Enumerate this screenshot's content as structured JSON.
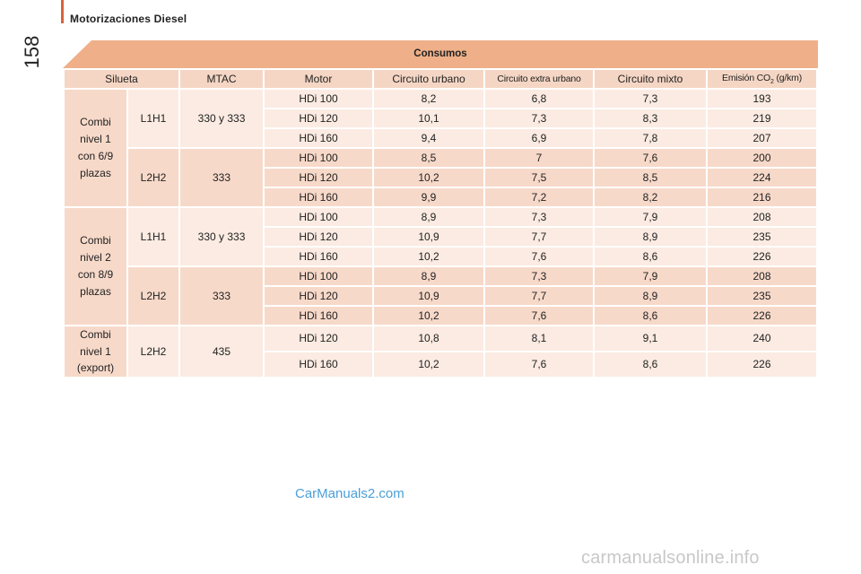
{
  "header": {
    "section_title": "Motorizaciones Diesel",
    "page_number": "158"
  },
  "table": {
    "title": "Consumos",
    "columns": {
      "silueta": "Silueta",
      "mtac": "MTAC",
      "motor": "Motor",
      "urbano": "Circuito urbano",
      "extra": "Circuito extra urbano",
      "mixto": "Circuito mixto",
      "emision_prefix": "Emisión CO",
      "emision_sub": "2",
      "emision_suffix": " (g/km)"
    },
    "groups": [
      {
        "silueta": [
          "Combi",
          "nivel 1",
          "con 6/9",
          "plazas"
        ],
        "variants": [
          {
            "body": "L1H1",
            "mtac": "330 y 333",
            "rows": [
              {
                "motor": "HDi 100",
                "urbano": "8,2",
                "extra": "6,8",
                "mixto": "7,3",
                "co2": "193"
              },
              {
                "motor": "HDi 120",
                "urbano": "10,1",
                "extra": "7,3",
                "mixto": "8,3",
                "co2": "219"
              },
              {
                "motor": "HDi 160",
                "urbano": "9,4",
                "extra": "6,9",
                "mixto": "7,8",
                "co2": "207"
              }
            ]
          },
          {
            "body": "L2H2",
            "mtac": "333",
            "rows": [
              {
                "motor": "HDi 100",
                "urbano": "8,5",
                "extra": "7",
                "mixto": "7,6",
                "co2": "200"
              },
              {
                "motor": "HDi 120",
                "urbano": "10,2",
                "extra": "7,5",
                "mixto": "8,5",
                "co2": "224"
              },
              {
                "motor": "HDi 160",
                "urbano": "9,9",
                "extra": "7,2",
                "mixto": "8,2",
                "co2": "216"
              }
            ]
          }
        ]
      },
      {
        "silueta": [
          "Combi",
          "nivel 2",
          "con 8/9",
          "plazas"
        ],
        "variants": [
          {
            "body": "L1H1",
            "mtac": "330 y 333",
            "rows": [
              {
                "motor": "HDi 100",
                "urbano": "8,9",
                "extra": "7,3",
                "mixto": "7,9",
                "co2": "208"
              },
              {
                "motor": "HDi 120",
                "urbano": "10,9",
                "extra": "7,7",
                "mixto": "8,9",
                "co2": "235"
              },
              {
                "motor": "HDi 160",
                "urbano": "10,2",
                "extra": "7,6",
                "mixto": "8,6",
                "co2": "226"
              }
            ]
          },
          {
            "body": "L2H2",
            "mtac": "333",
            "rows": [
              {
                "motor": "HDi 100",
                "urbano": "8,9",
                "extra": "7,3",
                "mixto": "7,9",
                "co2": "208"
              },
              {
                "motor": "HDi 120",
                "urbano": "10,9",
                "extra": "7,7",
                "mixto": "8,9",
                "co2": "235"
              },
              {
                "motor": "HDi 160",
                "urbano": "10,2",
                "extra": "7,6",
                "mixto": "8,6",
                "co2": "226"
              }
            ]
          }
        ]
      },
      {
        "silueta": [
          "Combi",
          "nivel 1",
          "(export)"
        ],
        "variants": [
          {
            "body": "L2H2",
            "mtac": "435",
            "rows": [
              {
                "motor": "HDi 120",
                "urbano": "10,8",
                "extra": "8,1",
                "mixto": "9,1",
                "co2": "240"
              },
              {
                "motor": "HDi 160",
                "urbano": "10,2",
                "extra": "7,6",
                "mixto": "8,6",
                "co2": "226"
              }
            ]
          }
        ]
      }
    ]
  },
  "watermarks": {
    "carmanuals": "CarManuals2.com",
    "footer": "carmanualsonline.info"
  },
  "colors": {
    "accent": "#d9623b",
    "header_bg": "#efb089",
    "row_light": "#fbebe2",
    "row_dark": "#f7d9c9",
    "link_blue": "#4a9fd9"
  }
}
